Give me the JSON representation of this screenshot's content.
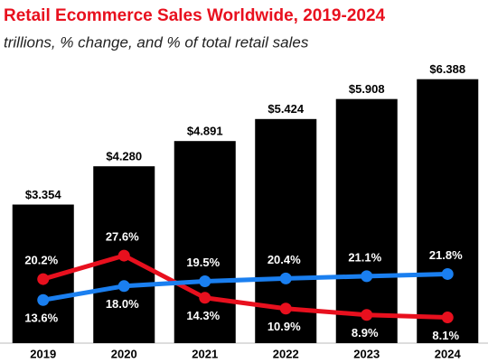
{
  "chart_data": {
    "type": "bar",
    "title": "Retail Ecommerce Sales Worldwide, 2019-2024",
    "subtitle": "trillions, % change, and % of total retail sales",
    "categories": [
      "2019",
      "2020",
      "2021",
      "2022",
      "2023",
      "2024"
    ],
    "values": [
      3.354,
      4.28,
      4.891,
      5.424,
      5.908,
      6.388
    ],
    "value_labels": [
      "$3.354",
      "$4.280",
      "$4.891",
      "$5.424",
      "$5.908",
      "$6.388"
    ],
    "color": "#000000",
    "ylim": [
      0,
      6.6
    ],
    "y2lim": [
      0,
      86
    ],
    "series": [
      {
        "name": "% change",
        "color": "#e8101e",
        "axis": "y2",
        "values": [
          20.2,
          27.6,
          14.3,
          10.9,
          8.9,
          8.1
        ],
        "value_labels": [
          "20.2%",
          "27.6%",
          "14.3%",
          "10.9%",
          "8.9%",
          "8.1%"
        ]
      },
      {
        "name": "% of total retail sales",
        "color": "#1a7ff0",
        "axis": "y2",
        "values": [
          13.6,
          18.0,
          19.5,
          20.4,
          21.1,
          21.8
        ],
        "value_labels": [
          "13.6%",
          "18.0%",
          "19.5%",
          "20.4%",
          "21.1%",
          "21.8%"
        ]
      }
    ]
  }
}
